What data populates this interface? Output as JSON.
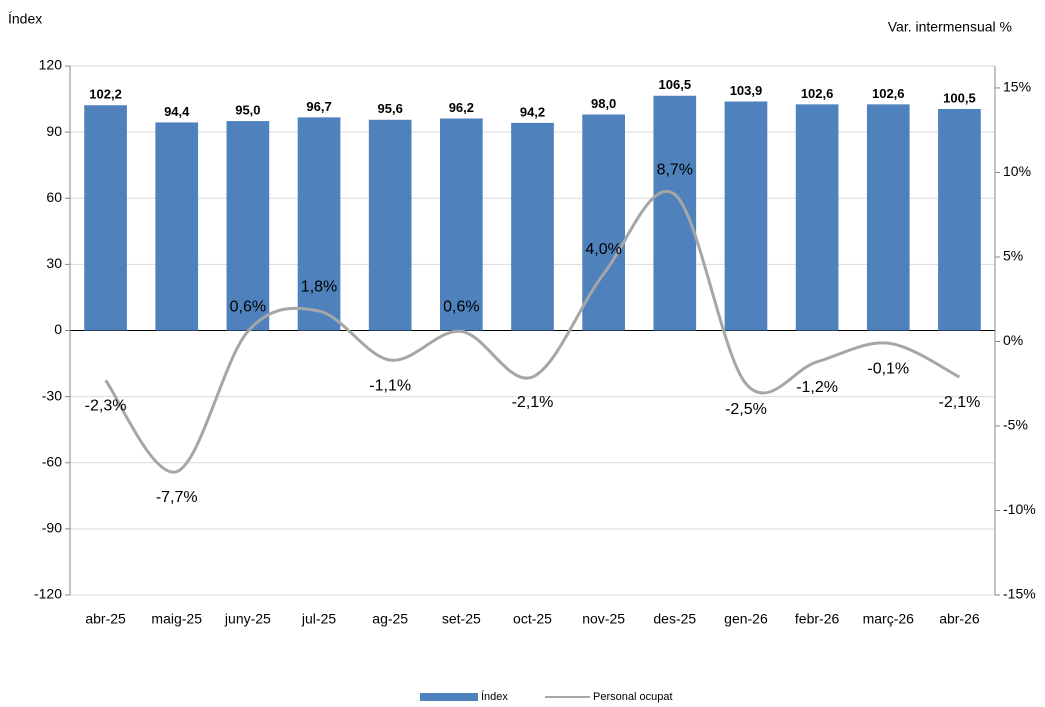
{
  "chart_data": {
    "type": "bar-line",
    "y_axis_title": "Índex",
    "y2_axis_title": "Var. intermensual %",
    "categories": [
      "abr-25",
      "maig-25",
      "juny-25",
      "jul-25",
      "ag-25",
      "set-25",
      "oct-25",
      "nov-25",
      "des-25",
      "gen-26",
      "febr-26",
      "març-26",
      "abr-26"
    ],
    "series": [
      {
        "name": "Índex",
        "type": "bar",
        "color": "#4f81bd",
        "values": [
          102.2,
          94.4,
          95.0,
          96.7,
          95.6,
          96.2,
          94.2,
          98.0,
          106.5,
          103.9,
          102.6,
          102.6,
          100.5
        ],
        "value_labels": [
          "102,2",
          "94,4",
          "95,0",
          "96,7",
          "95,6",
          "96,2",
          "94,2",
          "98,0",
          "106,5",
          "103,9",
          "102,6",
          "102,6",
          "100,5"
        ]
      },
      {
        "name": "Personal ocupat",
        "type": "line",
        "axis": "y2",
        "color": "#a6a6a6",
        "values": [
          -2.3,
          -7.7,
          0.6,
          1.8,
          -1.1,
          0.6,
          -2.1,
          4.0,
          8.7,
          -2.5,
          -1.2,
          -0.1,
          -2.1
        ],
        "value_labels": [
          "-2,3%",
          "-7,7%",
          "0,6%",
          "1,8%",
          "-1,1%",
          "0,6%",
          "-2,1%",
          "4,0%",
          "8,7%",
          "-2,5%",
          "-1,2%",
          "-0,1%",
          "-2,1%"
        ]
      }
    ],
    "ylim": [
      -120,
      120
    ],
    "yticks": [
      -120,
      -90,
      -60,
      -30,
      0,
      30,
      60,
      90,
      120
    ],
    "y2lim": [
      -15,
      16.3
    ],
    "y2ticks": [
      {
        "value": -15,
        "label": "-15%"
      },
      {
        "value": -10,
        "label": "-10%"
      },
      {
        "value": -5,
        "label": "-5%"
      },
      {
        "value": 0,
        "label": "0%"
      },
      {
        "value": 5,
        "label": "5%"
      },
      {
        "value": 10,
        "label": "10%"
      },
      {
        "value": 15,
        "label": "15%"
      }
    ],
    "grid": true
  }
}
